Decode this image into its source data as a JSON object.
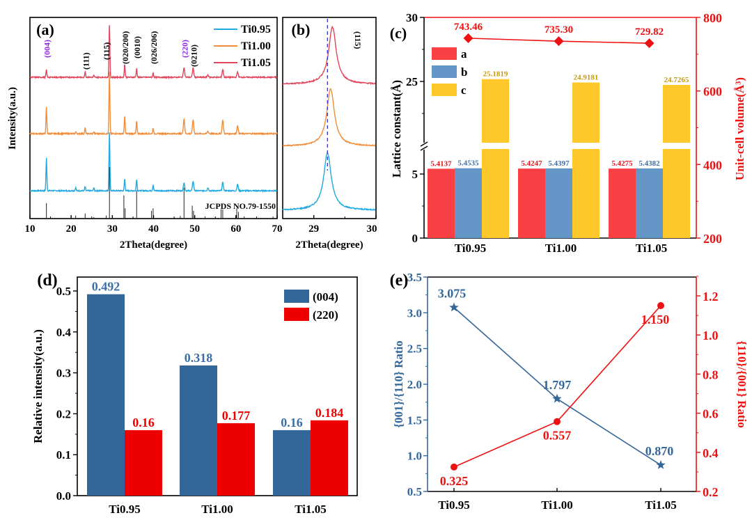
{
  "chart_data": [
    {
      "panel": "(a)",
      "type": "line",
      "xlabel": "2Theta(degree)",
      "ylabel": "Intensity(a.u.)",
      "xlim": [
        10,
        70
      ],
      "xticks": [
        "10",
        "20",
        "30",
        "40",
        "50",
        "60",
        "70"
      ],
      "legend": [
        "Ti0.95",
        "Ti1.00",
        "Ti1.05"
      ],
      "legend_position": "top-right",
      "reference_label": "JCPDS NO.79-1550",
      "series": [
        {
          "name": "Ti0.95",
          "color": "#1fa9e1",
          "peaks": [
            [
              14.0,
              0.55
            ],
            [
              21.1,
              0.05
            ],
            [
              23.4,
              0.07
            ],
            [
              25.5,
              0.05
            ],
            [
              29.3,
              1.0
            ],
            [
              33.0,
              0.2
            ],
            [
              35.9,
              0.2
            ],
            [
              39.9,
              0.1
            ],
            [
              47.4,
              0.14
            ],
            [
              49.6,
              0.16
            ],
            [
              53.2,
              0.05
            ],
            [
              56.8,
              0.14
            ],
            [
              60.4,
              0.11
            ]
          ]
        },
        {
          "name": "Ti1.00",
          "color": "#f28c38",
          "peaks": [
            [
              14.0,
              0.42
            ],
            [
              21.1,
              0.03
            ],
            [
              23.4,
              0.09
            ],
            [
              25.5,
              0.03
            ],
            [
              29.3,
              1.0
            ],
            [
              33.0,
              0.28
            ],
            [
              35.9,
              0.2
            ],
            [
              39.9,
              0.09
            ],
            [
              47.4,
              0.24
            ],
            [
              49.6,
              0.22
            ],
            [
              53.2,
              0.04
            ],
            [
              56.8,
              0.22
            ],
            [
              60.4,
              0.13
            ]
          ]
        },
        {
          "name": "Ti1.05",
          "color": "#e0455a",
          "peaks": [
            [
              14.0,
              0.13
            ],
            [
              23.4,
              0.1
            ],
            [
              25.5,
              0.03
            ],
            [
              29.3,
              0.9
            ],
            [
              33.0,
              0.22
            ],
            [
              35.9,
              0.15
            ],
            [
              39.9,
              0.07
            ],
            [
              47.4,
              0.17
            ],
            [
              49.6,
              0.16
            ],
            [
              53.2,
              0.04
            ],
            [
              56.8,
              0.13
            ],
            [
              60.4,
              0.09
            ]
          ]
        }
      ],
      "reference_lines": [
        [
          14.0,
          0.3
        ],
        [
          21.1,
          0.06
        ],
        [
          23.4,
          0.1
        ],
        [
          25.5,
          0.03
        ],
        [
          28.5,
          0.06
        ],
        [
          29.3,
          1.0
        ],
        [
          32.8,
          0.45
        ],
        [
          33.1,
          0.2
        ],
        [
          35.9,
          0.55
        ],
        [
          39.5,
          0.15
        ],
        [
          39.9,
          0.2
        ],
        [
          46.5,
          0.05
        ],
        [
          47.4,
          0.6
        ],
        [
          49.4,
          0.25
        ],
        [
          49.7,
          0.15
        ],
        [
          52.5,
          0.04
        ],
        [
          56.4,
          0.18
        ],
        [
          56.8,
          0.18
        ],
        [
          60.2,
          0.2
        ],
        [
          60.6,
          0.13
        ],
        [
          62.0,
          0.04
        ],
        [
          69.0,
          0.04
        ]
      ],
      "annotations": [
        {
          "text": "(004)",
          "x": 14.0,
          "color": "#8a2be2"
        },
        {
          "text": "(111)",
          "x": 23.4,
          "color": "#000000"
        },
        {
          "text": "(115)",
          "x": 28.4,
          "color": "#000000"
        },
        {
          "text": "(020/200)",
          "x": 33.0,
          "color": "#000000"
        },
        {
          "text": "(0010)",
          "x": 35.9,
          "color": "#000000"
        },
        {
          "text": "(026/206)",
          "x": 39.9,
          "color": "#000000"
        },
        {
          "text": "(220)",
          "x": 47.4,
          "color": "#8a2be2"
        },
        {
          "text": "(0210)",
          "x": 49.6,
          "color": "#000000"
        }
      ]
    },
    {
      "panel": "(b)",
      "type": "line",
      "xlabel": "2Theta(degree)",
      "xlim": [
        28.5,
        30
      ],
      "xticks": [
        "29",
        "30"
      ],
      "annotation": "(115)",
      "dashed_line_x": 29.22,
      "series": [
        {
          "name": "Ti0.95",
          "color": "#1fa9e1",
          "peak_x": 29.22
        },
        {
          "name": "Ti1.00",
          "color": "#f28c38",
          "peak_x": 29.27
        },
        {
          "name": "Ti1.05",
          "color": "#e0455a",
          "peak_x": 29.3
        }
      ]
    },
    {
      "panel": "(c)",
      "type": "bar",
      "categories": [
        "Ti0.95",
        "Ti1.00",
        "Ti1.05"
      ],
      "ylabel": "Lattice constant(Å)",
      "y2label": "Unit-cell volume(Å³)",
      "yticks": [
        "0",
        "5",
        "25",
        "30"
      ],
      "y2lim": [
        200,
        800
      ],
      "y2ticks": [
        "200",
        "400",
        "600",
        "800"
      ],
      "axis_break": true,
      "legend": [
        "a",
        "b",
        "c"
      ],
      "legend_position": "top-left",
      "series": [
        {
          "name": "a",
          "color": "#f84045",
          "label_color": "#e8101a",
          "values": [
            5.4137,
            5.4247,
            5.4275
          ],
          "labels": [
            "5.4137",
            "5.4247",
            "5.4275"
          ]
        },
        {
          "name": "b",
          "color": "#6497c8",
          "label_color": "#3e6fa3",
          "values": [
            5.4535,
            5.4397,
            5.4382
          ],
          "labels": [
            "5.4535",
            "5.4397",
            "5.4382"
          ]
        },
        {
          "name": "c",
          "color": "#ffc82a",
          "label_color": "#c59a10",
          "values": [
            25.1819,
            24.9181,
            24.7265
          ],
          "labels": [
            "25.1819",
            "24.9181",
            "24.7265"
          ]
        }
      ],
      "volume_series": {
        "name": "Unit-cell volume",
        "color": "#ee1111",
        "values": [
          743.46,
          735.3,
          729.82
        ],
        "labels": [
          "743.46",
          "735.30",
          "729.82"
        ]
      }
    },
    {
      "panel": "(d)",
      "type": "bar",
      "categories": [
        "Ti0.95",
        "Ti1.00",
        "Ti1.05"
      ],
      "ylabel": "Relative intensity(a.u.)",
      "ylim": [
        0,
        0.55
      ],
      "yticks": [
        "0.0",
        "0.1",
        "0.2",
        "0.3",
        "0.4",
        "0.5"
      ],
      "legend": [
        "(004)",
        "(220)"
      ],
      "legend_position": "top-right",
      "series": [
        {
          "name": "(004)",
          "color": "#336699",
          "label_color": "#3a6ea5",
          "values": [
            0.492,
            0.318,
            0.16
          ],
          "labels": [
            "0.492",
            "0.318",
            "0.16"
          ]
        },
        {
          "name": "(220)",
          "color": "#ee0000",
          "label_color": "#ee0000",
          "values": [
            0.16,
            0.177,
            0.184
          ],
          "labels": [
            "0.16",
            "0.177",
            "0.184"
          ]
        }
      ]
    },
    {
      "panel": "(e)",
      "type": "line",
      "categories": [
        "Ti0.95",
        "Ti1.00",
        "Ti1.05"
      ],
      "ylabel": "{001}/{110} Ratio",
      "y2label": "{110}/{001} Ratio",
      "ylim": [
        0.5,
        3.5
      ],
      "yticks": [
        "0.5",
        "1.0",
        "1.5",
        "2.0",
        "2.5",
        "3.0",
        "3.5"
      ],
      "y2lim": [
        0.2,
        1.3
      ],
      "y2ticks": [
        "0.2",
        "0.4",
        "0.6",
        "0.8",
        "1.0",
        "1.2"
      ],
      "series": [
        {
          "name": "{001}/{110}",
          "axis": "left",
          "marker": "star",
          "color": "#336699",
          "values": [
            3.075,
            1.797,
            0.87
          ],
          "labels": [
            "3.075",
            "1.797",
            "0.870"
          ]
        },
        {
          "name": "{110}/{001}",
          "axis": "right",
          "marker": "circle",
          "color": "#ee1111",
          "values": [
            0.325,
            0.557,
            1.15
          ],
          "labels": [
            "0.325",
            "0.557",
            "1.150"
          ]
        }
      ]
    }
  ]
}
